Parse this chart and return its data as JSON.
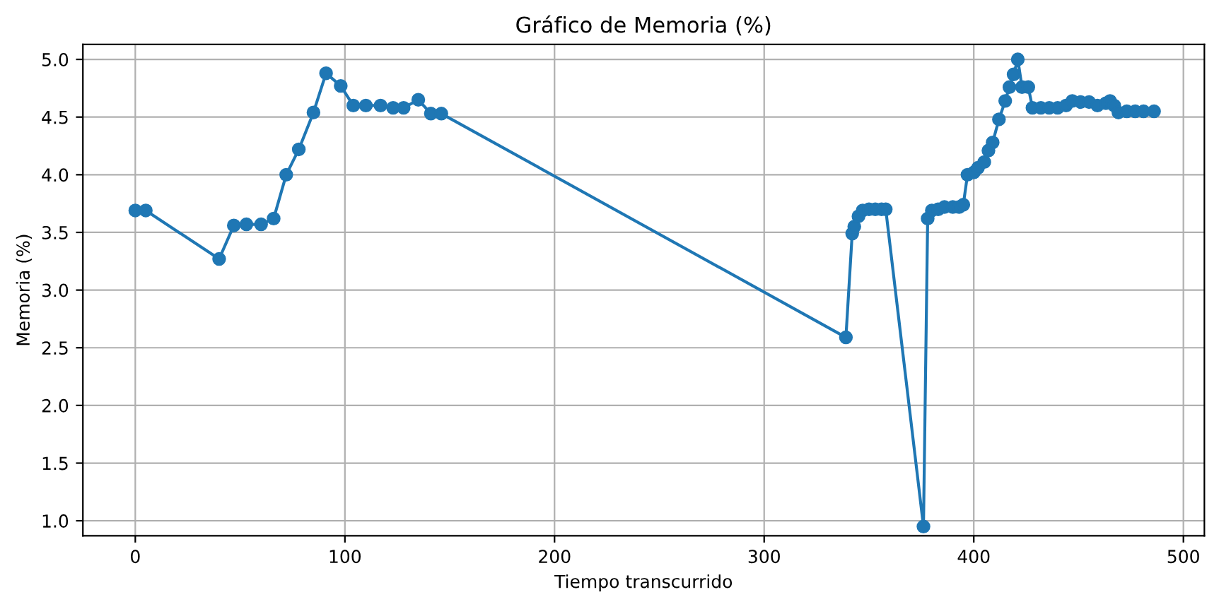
{
  "chart_data": {
    "type": "line",
    "title": "Gráfico de Memoria (%)",
    "xlabel": "Tiempo transcurrido",
    "ylabel": "Memoria (%)",
    "x": [
      0,
      5,
      40,
      47,
      53,
      60,
      66,
      72,
      78,
      85,
      91,
      98,
      104,
      110,
      117,
      123,
      128,
      135,
      141,
      146,
      339,
      342,
      343,
      345,
      347,
      350,
      353,
      356,
      358,
      376,
      378,
      380,
      383,
      386,
      390,
      393,
      395,
      397,
      400,
      402,
      405,
      407,
      409,
      412,
      415,
      417,
      419,
      421,
      423,
      426,
      428,
      432,
      436,
      440,
      444,
      447,
      451,
      455,
      459,
      463,
      465,
      467,
      469,
      473,
      477,
      481,
      486
    ],
    "series": [
      {
        "color": "#1f77b4",
        "values": [
          3.69,
          3.69,
          3.27,
          3.56,
          3.57,
          3.57,
          3.62,
          4.0,
          4.22,
          4.54,
          4.88,
          4.77,
          4.6,
          4.6,
          4.6,
          4.58,
          4.58,
          4.65,
          4.53,
          4.53,
          2.59,
          3.49,
          3.55,
          3.64,
          3.69,
          3.7,
          3.7,
          3.7,
          3.7,
          0.95,
          3.62,
          3.69,
          3.7,
          3.72,
          3.72,
          3.72,
          3.74,
          4.0,
          4.02,
          4.06,
          4.11,
          4.21,
          4.28,
          4.48,
          4.64,
          4.76,
          4.87,
          5.0,
          4.76,
          4.76,
          4.58,
          4.58,
          4.58,
          4.58,
          4.6,
          4.64,
          4.63,
          4.63,
          4.6,
          4.62,
          4.64,
          4.6,
          4.54,
          4.55,
          4.55,
          4.55,
          4.55
        ]
      }
    ],
    "xlim": [
      -25,
      510
    ],
    "ylim": [
      0.87,
      5.13
    ],
    "xticks": [
      0,
      100,
      200,
      300,
      400,
      500
    ],
    "yticks": [
      {
        "value": 1.0,
        "label": "1.0"
      },
      {
        "value": 1.5,
        "label": "1.5"
      },
      {
        "value": 2.0,
        "label": "2.0"
      },
      {
        "value": 2.5,
        "label": "2.5"
      },
      {
        "value": 3.0,
        "label": "3.0"
      },
      {
        "value": 3.5,
        "label": "3.5"
      },
      {
        "value": 4.0,
        "label": "4.0"
      },
      {
        "value": 4.5,
        "label": "4.5"
      },
      {
        "value": 5.0,
        "label": "5.0"
      }
    ],
    "grid": true,
    "marker": "circle",
    "line_style": "solid"
  }
}
